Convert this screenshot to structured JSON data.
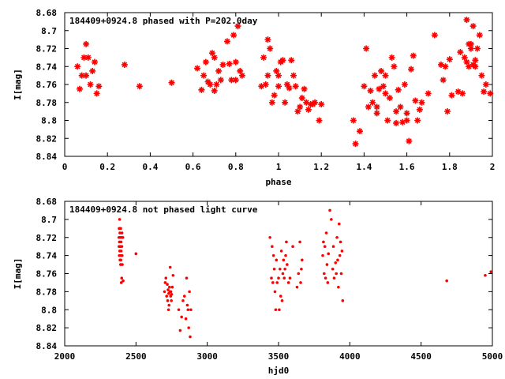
{
  "colors": {
    "marker": "#ff0000",
    "axis": "#000000",
    "background": "#ffffff"
  },
  "chart_data": [
    {
      "type": "scatter",
      "title": "184409+0924.8 phased with P=202.0day",
      "xlabel": "phase",
      "ylabel": "I[mag]",
      "xlim": [
        0,
        2
      ],
      "ylim": [
        8.68,
        8.84
      ],
      "y_inverted": true,
      "x_ticks": [
        "0",
        "0.2",
        "0.4",
        "0.6",
        "0.8",
        "1",
        "1.2",
        "1.4",
        "1.6",
        "1.8",
        "2"
      ],
      "y_ticks": [
        "8.68",
        "8.7",
        "8.72",
        "8.74",
        "8.76",
        "8.78",
        "8.8",
        "8.82",
        "8.84"
      ],
      "grid": false,
      "marker": "star",
      "x": [
        0.06,
        0.07,
        0.08,
        0.09,
        0.1,
        0.1,
        0.11,
        0.12,
        0.13,
        0.14,
        0.15,
        0.16,
        0.28,
        0.35,
        0.5,
        0.62,
        0.64,
        0.65,
        0.66,
        0.67,
        0.68,
        0.69,
        0.7,
        0.7,
        0.71,
        0.72,
        0.73,
        0.74,
        0.76,
        0.77,
        0.78,
        0.79,
        0.8,
        0.8,
        0.81,
        0.82,
        0.83,
        0.92,
        0.93,
        0.94,
        0.95,
        0.95,
        0.96,
        0.97,
        0.98,
        0.99,
        1.0,
        1.0,
        1.01,
        1.02,
        1.03,
        1.04,
        1.05,
        1.06,
        1.07,
        1.08,
        1.09,
        1.1,
        1.11,
        1.12,
        1.13,
        1.14,
        1.15,
        1.16,
        1.17,
        1.19,
        1.2,
        1.35,
        1.36,
        1.38,
        1.4,
        1.41,
        1.42,
        1.43,
        1.44,
        1.45,
        1.46,
        1.46,
        1.47,
        1.48,
        1.49,
        1.5,
        1.5,
        1.51,
        1.52,
        1.53,
        1.54,
        1.55,
        1.55,
        1.56,
        1.57,
        1.58,
        1.59,
        1.6,
        1.6,
        1.61,
        1.62,
        1.63,
        1.64,
        1.65,
        1.66,
        1.67,
        1.7,
        1.73,
        1.76,
        1.77,
        1.78,
        1.79,
        1.8,
        1.81,
        1.84,
        1.85,
        1.86,
        1.87,
        1.88,
        1.88,
        1.89,
        1.89,
        1.9,
        1.9,
        1.91,
        1.91,
        1.92,
        1.92,
        1.93,
        1.94,
        1.95,
        1.96,
        1.97,
        1.99
      ],
      "y": [
        8.74,
        8.765,
        8.75,
        8.73,
        8.75,
        8.715,
        8.73,
        8.76,
        8.745,
        8.735,
        8.77,
        8.762,
        8.738,
        8.762,
        8.758,
        8.742,
        8.766,
        8.75,
        8.735,
        8.757,
        8.76,
        8.725,
        8.767,
        8.73,
        8.76,
        8.745,
        8.755,
        8.738,
        8.712,
        8.737,
        8.755,
        8.705,
        8.735,
        8.755,
        8.695,
        8.745,
        8.75,
        8.762,
        8.73,
        8.76,
        8.75,
        8.71,
        8.72,
        8.78,
        8.772,
        8.745,
        8.75,
        8.762,
        8.735,
        8.733,
        8.78,
        8.76,
        8.764,
        8.733,
        8.75,
        8.762,
        8.79,
        8.785,
        8.775,
        8.765,
        8.78,
        8.788,
        8.782,
        8.782,
        8.78,
        8.8,
        8.782,
        8.8,
        8.826,
        8.812,
        8.762,
        8.72,
        8.785,
        8.767,
        8.78,
        8.75,
        8.792,
        8.785,
        8.765,
        8.745,
        8.762,
        8.75,
        8.77,
        8.8,
        8.775,
        8.73,
        8.74,
        8.79,
        8.803,
        8.766,
        8.785,
        8.802,
        8.76,
        8.8,
        8.792,
        8.823,
        8.743,
        8.728,
        8.778,
        8.8,
        8.788,
        8.78,
        8.77,
        8.705,
        8.738,
        8.755,
        8.74,
        8.79,
        8.732,
        8.772,
        8.768,
        8.724,
        8.77,
        8.73,
        8.688,
        8.735,
        8.74,
        8.715,
        8.715,
        8.72,
        8.738,
        8.695,
        8.74,
        8.733,
        8.72,
        8.705,
        8.75,
        8.768,
        8.76,
        8.77
      ]
    },
    {
      "type": "scatter",
      "title": "184409+0924.8 not phased light curve",
      "xlabel": "hjd0",
      "ylabel": "I[mag]",
      "xlim": [
        2000,
        5000
      ],
      "ylim": [
        8.68,
        8.84
      ],
      "y_inverted": true,
      "x_ticks": [
        "2000",
        "2500",
        "3000",
        "3500",
        "4000",
        "4500",
        "5000"
      ],
      "y_ticks": [
        "8.68",
        "8.7",
        "8.72",
        "8.74",
        "8.76",
        "8.78",
        "8.8",
        "8.82",
        "8.84"
      ],
      "grid": false,
      "marker": "dot",
      "x": [
        2380,
        2381,
        2382,
        2383,
        2384,
        2385,
        2386,
        2387,
        2388,
        2389,
        2390,
        2391,
        2392,
        2393,
        2394,
        2395,
        2396,
        2397,
        2398,
        2399,
        2400,
        2401,
        2402,
        2403,
        2404,
        2408,
        2410,
        2500,
        2700,
        2705,
        2710,
        2715,
        2720,
        2722,
        2725,
        2728,
        2730,
        2732,
        2735,
        2738,
        2740,
        2743,
        2745,
        2748,
        2750,
        2755,
        2760,
        2800,
        2810,
        2820,
        2830,
        2840,
        2850,
        2855,
        2860,
        2865,
        2870,
        2875,
        2880,
        2885,
        3440,
        3450,
        3455,
        3460,
        3465,
        3470,
        3475,
        3480,
        3485,
        3490,
        3500,
        3505,
        3510,
        3515,
        3520,
        3525,
        3530,
        3535,
        3540,
        3545,
        3550,
        3555,
        3560,
        3570,
        3580,
        3600,
        3630,
        3640,
        3650,
        3655,
        3660,
        3665,
        3810,
        3815,
        3820,
        3825,
        3830,
        3835,
        3840,
        3845,
        3850,
        3860,
        3870,
        3880,
        3885,
        3890,
        3900,
        3905,
        3910,
        3915,
        3920,
        3925,
        3930,
        3935,
        3940,
        3945,
        3950,
        4680,
        4950,
        4990
      ],
      "y": [
        8.72,
        8.73,
        8.71,
        8.74,
        8.725,
        8.7,
        8.735,
        8.715,
        8.745,
        8.73,
        8.72,
        8.74,
        8.75,
        8.71,
        8.745,
        8.725,
        8.735,
        8.77,
        8.72,
        8.74,
        8.765,
        8.73,
        8.715,
        8.74,
        8.75,
        8.72,
        8.768,
        8.738,
        8.78,
        8.77,
        8.765,
        8.785,
        8.772,
        8.79,
        8.778,
        8.8,
        8.782,
        8.795,
        8.775,
        8.78,
        8.753,
        8.785,
        8.78,
        8.79,
        8.783,
        8.775,
        8.762,
        8.8,
        8.823,
        8.808,
        8.79,
        8.785,
        8.81,
        8.765,
        8.795,
        8.8,
        8.82,
        8.78,
        8.83,
        8.8,
        8.72,
        8.765,
        8.73,
        8.77,
        8.74,
        8.755,
        8.78,
        8.8,
        8.745,
        8.77,
        8.765,
        8.8,
        8.755,
        8.785,
        8.735,
        8.79,
        8.76,
        8.745,
        8.765,
        8.755,
        8.74,
        8.725,
        8.75,
        8.77,
        8.765,
        8.73,
        8.775,
        8.76,
        8.725,
        8.77,
        8.755,
        8.745,
        8.74,
        8.725,
        8.76,
        8.73,
        8.765,
        8.715,
        8.75,
        8.77,
        8.738,
        8.69,
        8.7,
        8.755,
        8.73,
        8.765,
        8.748,
        8.76,
        8.72,
        8.745,
        8.775,
        8.705,
        8.74,
        8.725,
        8.76,
        8.735,
        8.79,
        8.768,
        8.762,
        8.758
      ]
    }
  ]
}
